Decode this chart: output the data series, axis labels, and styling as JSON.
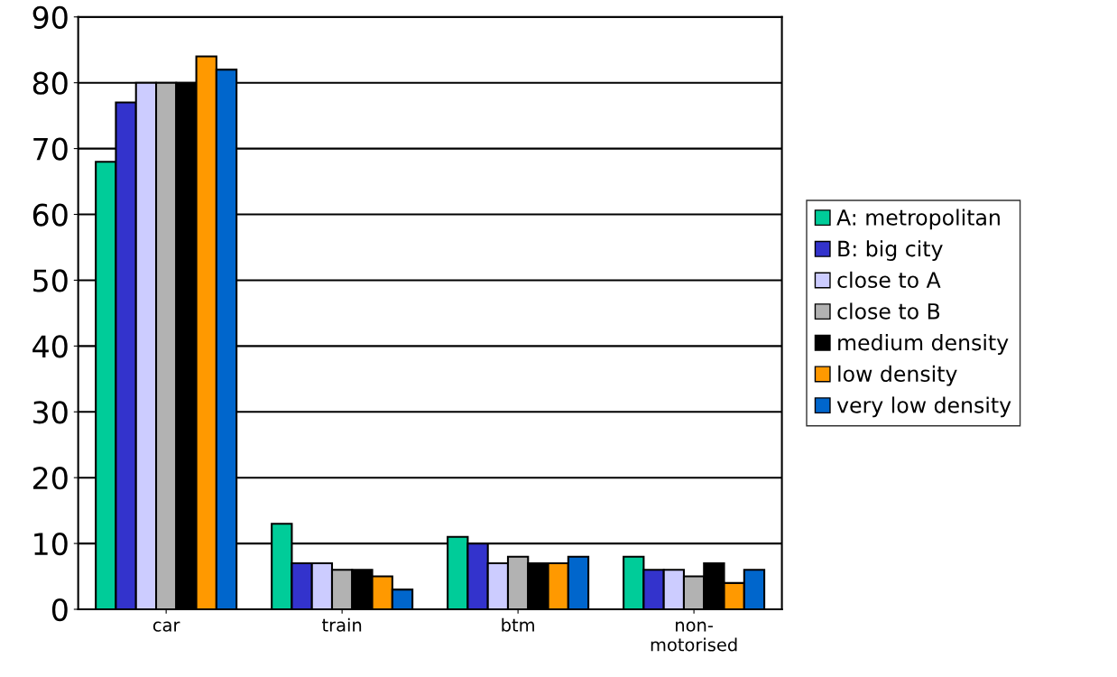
{
  "chart_data": {
    "type": "bar",
    "categories": [
      "car",
      "train",
      "btm",
      "non-\nmotorised"
    ],
    "series": [
      {
        "name": "A: metropolitan",
        "color": "#00cc99",
        "values": [
          68,
          13,
          11,
          8
        ]
      },
      {
        "name": "B: big city",
        "color": "#3333cc",
        "values": [
          77,
          7,
          10,
          6
        ]
      },
      {
        "name": "close to A",
        "color": "#ccccff",
        "values": [
          80,
          7,
          7,
          6
        ]
      },
      {
        "name": "close to B",
        "color": "#b2b2b2",
        "values": [
          80,
          6,
          8,
          5
        ]
      },
      {
        "name": "medium density",
        "color": "#000000",
        "values": [
          80,
          6,
          7,
          7
        ]
      },
      {
        "name": "low density",
        "color": "#ff9900",
        "values": [
          84,
          5,
          7,
          4
        ]
      },
      {
        "name": "very low density",
        "color": "#0066cc",
        "values": [
          82,
          3,
          8,
          6
        ]
      }
    ],
    "ylim": [
      0,
      90
    ],
    "yticks": [
      0,
      10,
      20,
      30,
      40,
      50,
      60,
      70,
      80,
      90
    ],
    "grid": "y",
    "legend": "right"
  }
}
